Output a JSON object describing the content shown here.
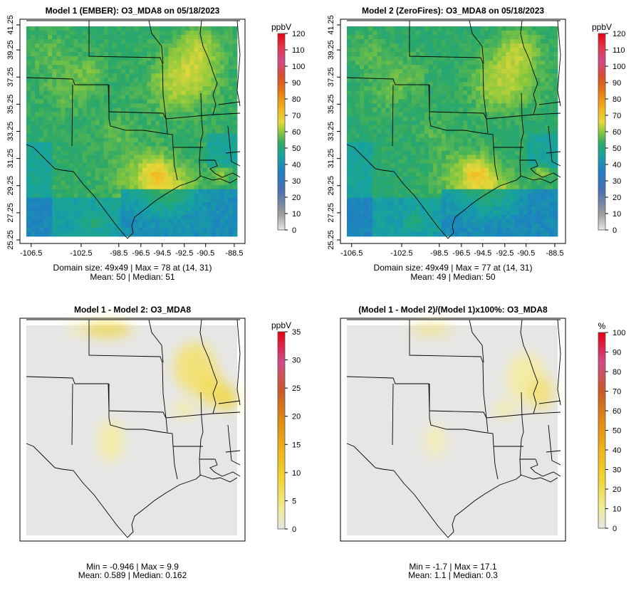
{
  "panels": [
    {
      "id": "p1",
      "title": "Model 1 (EMBER): O3_MDA8 on 05/18/2023",
      "unit": "ppbV",
      "colorbar": {
        "min": 0,
        "max": 120,
        "ticks": [
          0,
          10,
          20,
          30,
          40,
          50,
          60,
          70,
          80,
          90,
          100,
          110,
          120
        ]
      },
      "xticks": [
        "-106.5",
        "-102.5",
        "-98.5",
        "-96.5",
        "-94.5",
        "-92.5",
        "-90.5",
        "-88.5"
      ],
      "yticks": [
        "25.25",
        "27.25",
        "29.25",
        "31.25",
        "33.25",
        "35.25",
        "37.25",
        "39.25",
        "41.25"
      ],
      "stats": [
        "Domain size: 49x49 | Max = 78 at (14, 31)",
        "Mean: 50 |  Median: 51"
      ]
    },
    {
      "id": "p2",
      "title": "Model 2 (ZeroFires): O3_MDA8 on 05/18/2023",
      "unit": "ppbV",
      "colorbar": {
        "min": 0,
        "max": 120,
        "ticks": [
          0,
          10,
          20,
          30,
          40,
          50,
          60,
          70,
          80,
          90,
          100,
          110,
          120
        ]
      },
      "xticks": [
        "-106.5",
        "-102.5",
        "-98.5",
        "-96.5",
        "-94.5",
        "-92.5",
        "-90.5",
        "-88.5"
      ],
      "yticks": [
        "25.25",
        "27.25",
        "29.25",
        "31.25",
        "33.25",
        "35.25",
        "37.25",
        "39.25",
        "41.25"
      ],
      "stats": [
        "Domain size: 49x49 | Max = 77 at (14, 31)",
        "Mean: 49 |  Median: 50"
      ]
    },
    {
      "id": "p3",
      "title": "Model 1 - Model 2: O3_MDA8",
      "unit": "ppbV",
      "colorbar": {
        "min": 0,
        "max": 35,
        "ticks": [
          0,
          5,
          10,
          15,
          20,
          25,
          30,
          35
        ]
      },
      "xticks": [],
      "yticks": [],
      "stats": [
        "Min = -0.946 | Max = 9.9",
        "Mean: 0.589 |  Median: 0.162"
      ]
    },
    {
      "id": "p4",
      "title": "(Model 1 - Model 2)/(Model 1)x100%: O3_MDA8",
      "unit": "%",
      "colorbar": {
        "min": 0,
        "max": 100,
        "ticks": [
          0,
          10,
          20,
          30,
          40,
          50,
          60,
          70,
          80,
          90,
          100
        ]
      },
      "xticks": [],
      "yticks": [],
      "stats": [
        "Min = -1.7 | Max = 17.1",
        "Mean: 1.1 |  Median: 0.3"
      ]
    }
  ],
  "colors": {
    "concentration_ramp": [
      "#e6e6e6",
      "#9c9c9c",
      "#4a6fb0",
      "#1e7fc2",
      "#16a3a0",
      "#2da866",
      "#8ec93c",
      "#e6d73a",
      "#f2b21a",
      "#e67c12",
      "#d94e2c",
      "#d24a8a",
      "#e6000f"
    ],
    "difference_ramp": [
      "#e6e6e6",
      "#f0ec9a",
      "#f2d530",
      "#eeb41a",
      "#e08a10",
      "#c85a28",
      "#d24a8a",
      "#e6000f"
    ]
  }
}
